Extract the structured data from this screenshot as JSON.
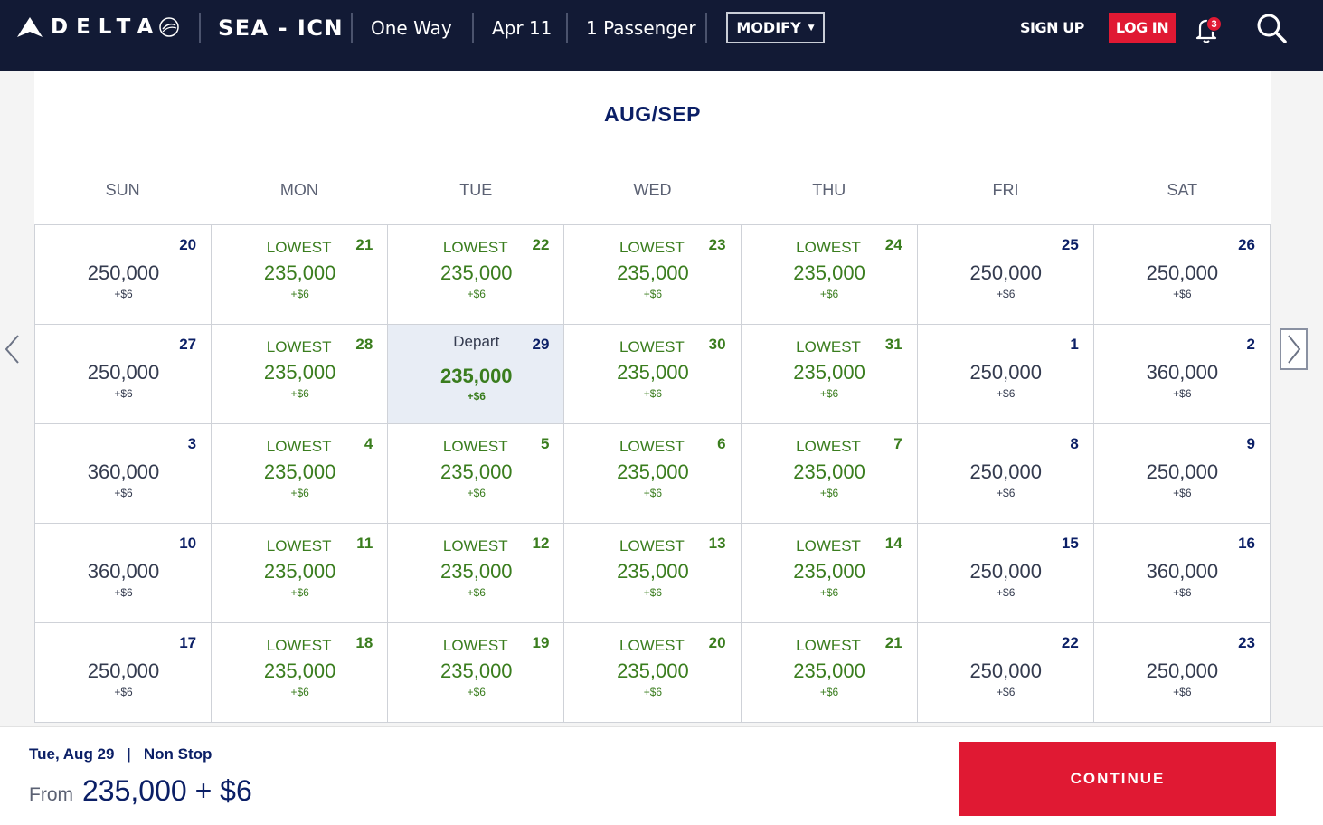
{
  "header": {
    "logo_text": "DELTA",
    "route": "SEA - ICN",
    "trip_type": "One Way",
    "date": "Apr 11",
    "passengers": "1 Passenger",
    "modify_label": "MODIFY",
    "signup_label": "SIGN UP",
    "login_label": "LOG IN",
    "notification_count": "3"
  },
  "calendar": {
    "month_title": "AUG/SEP",
    "weekdays": [
      "SUN",
      "MON",
      "TUE",
      "WED",
      "THU",
      "FRI",
      "SAT"
    ],
    "lowest_label": "LOWEST",
    "depart_label": "Depart",
    "weeks": [
      [
        {
          "day": "20",
          "price": "250,000",
          "fee": "+$6",
          "lowest": false
        },
        {
          "day": "21",
          "price": "235,000",
          "fee": "+$6",
          "lowest": true
        },
        {
          "day": "22",
          "price": "235,000",
          "fee": "+$6",
          "lowest": true
        },
        {
          "day": "23",
          "price": "235,000",
          "fee": "+$6",
          "lowest": true
        },
        {
          "day": "24",
          "price": "235,000",
          "fee": "+$6",
          "lowest": true
        },
        {
          "day": "25",
          "price": "250,000",
          "fee": "+$6",
          "lowest": false
        },
        {
          "day": "26",
          "price": "250,000",
          "fee": "+$6",
          "lowest": false
        }
      ],
      [
        {
          "day": "27",
          "price": "250,000",
          "fee": "+$6",
          "lowest": false
        },
        {
          "day": "28",
          "price": "235,000",
          "fee": "+$6",
          "lowest": true
        },
        {
          "day": "29",
          "price": "235,000",
          "fee": "+$6",
          "lowest": true,
          "selected": true
        },
        {
          "day": "30",
          "price": "235,000",
          "fee": "+$6",
          "lowest": true
        },
        {
          "day": "31",
          "price": "235,000",
          "fee": "+$6",
          "lowest": true
        },
        {
          "day": "1",
          "price": "250,000",
          "fee": "+$6",
          "lowest": false
        },
        {
          "day": "2",
          "price": "360,000",
          "fee": "+$6",
          "lowest": false
        }
      ],
      [
        {
          "day": "3",
          "price": "360,000",
          "fee": "+$6",
          "lowest": false
        },
        {
          "day": "4",
          "price": "235,000",
          "fee": "+$6",
          "lowest": true
        },
        {
          "day": "5",
          "price": "235,000",
          "fee": "+$6",
          "lowest": true
        },
        {
          "day": "6",
          "price": "235,000",
          "fee": "+$6",
          "lowest": true
        },
        {
          "day": "7",
          "price": "235,000",
          "fee": "+$6",
          "lowest": true
        },
        {
          "day": "8",
          "price": "250,000",
          "fee": "+$6",
          "lowest": false
        },
        {
          "day": "9",
          "price": "250,000",
          "fee": "+$6",
          "lowest": false
        }
      ],
      [
        {
          "day": "10",
          "price": "360,000",
          "fee": "+$6",
          "lowest": false
        },
        {
          "day": "11",
          "price": "235,000",
          "fee": "+$6",
          "lowest": true
        },
        {
          "day": "12",
          "price": "235,000",
          "fee": "+$6",
          "lowest": true
        },
        {
          "day": "13",
          "price": "235,000",
          "fee": "+$6",
          "lowest": true
        },
        {
          "day": "14",
          "price": "235,000",
          "fee": "+$6",
          "lowest": true
        },
        {
          "day": "15",
          "price": "250,000",
          "fee": "+$6",
          "lowest": false
        },
        {
          "day": "16",
          "price": "360,000",
          "fee": "+$6",
          "lowest": false
        }
      ],
      [
        {
          "day": "17",
          "price": "250,000",
          "fee": "+$6",
          "lowest": false
        },
        {
          "day": "18",
          "price": "235,000",
          "fee": "+$6",
          "lowest": true
        },
        {
          "day": "19",
          "price": "235,000",
          "fee": "+$6",
          "lowest": true
        },
        {
          "day": "20",
          "price": "235,000",
          "fee": "+$6",
          "lowest": true
        },
        {
          "day": "21",
          "price": "235,000",
          "fee": "+$6",
          "lowest": true
        },
        {
          "day": "22",
          "price": "250,000",
          "fee": "+$6",
          "lowest": false
        },
        {
          "day": "23",
          "price": "250,000",
          "fee": "+$6",
          "lowest": false
        }
      ]
    ]
  },
  "footer": {
    "selected_date": "Tue, Aug 29",
    "separator": "|",
    "stops": "Non Stop",
    "from_label": "From",
    "total_price": "235,000 + $6",
    "continue_label": "CONTINUE"
  },
  "colors": {
    "header_bg": "#121a35",
    "brand_red": "#e01933",
    "navy_text": "#0b1f66",
    "lowest_green": "#3a7d1e",
    "selected_bg": "#e8edf5"
  },
  "icons": {
    "logo": "delta-widget-icon",
    "bell": "bell-icon",
    "search": "search-icon",
    "prev": "chevron-left-icon",
    "next": "chevron-right-icon",
    "dropdown": "caret-down-icon"
  }
}
